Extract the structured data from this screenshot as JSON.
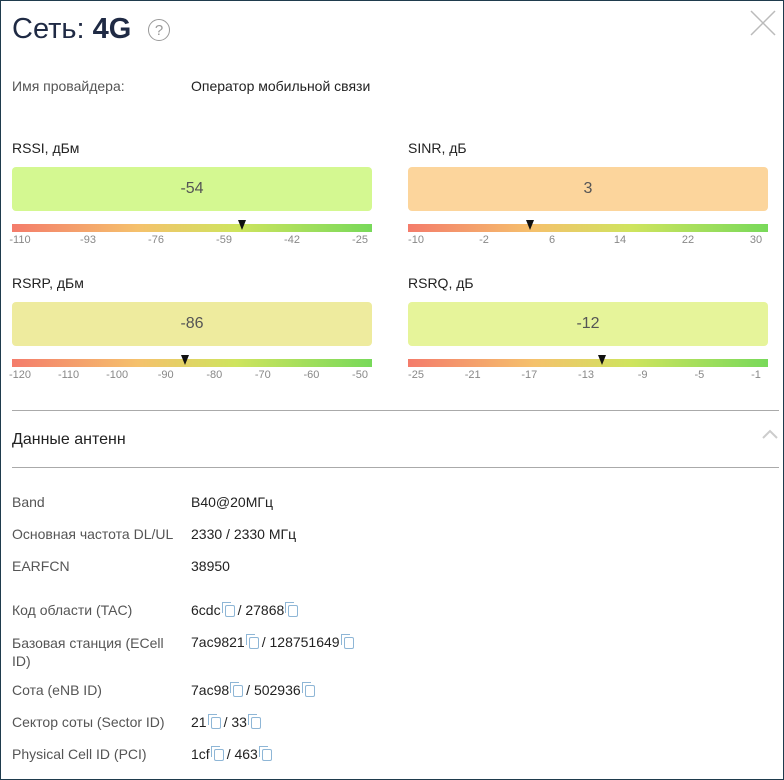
{
  "header": {
    "title_prefix": "Сеть:",
    "title_value": "4G",
    "help_glyph": "?"
  },
  "provider": {
    "label": "Имя провайдера:",
    "value": "Оператор мобильной связи"
  },
  "metrics": [
    {
      "label": "RSSI, дБм",
      "value": "-54",
      "fraction": 0.64,
      "color": "#d4f891",
      "ticks": [
        "-110",
        "-93",
        "-76",
        "-59",
        "-42",
        "-25"
      ]
    },
    {
      "label": "SINR, дБ",
      "value": "3",
      "fraction": 0.34,
      "color": "#fcd59c",
      "ticks": [
        "-10",
        "-2",
        "6",
        "14",
        "22",
        "30"
      ]
    },
    {
      "label": "RSRP, дБм",
      "value": "-86",
      "fraction": 0.48,
      "color": "#eeeb9e",
      "ticks": [
        "-120",
        "-110",
        "-100",
        "-90",
        "-80",
        "-70",
        "-60",
        "-50"
      ]
    },
    {
      "label": "RSRQ, дБ",
      "value": "-12",
      "fraction": 0.54,
      "color": "#e6f49a",
      "ticks": [
        "-25",
        "-21",
        "-17",
        "-13",
        "-9",
        "-5",
        "-1"
      ]
    }
  ],
  "antenna": {
    "title": "Данные антенн",
    "rows": [
      {
        "label": "Band",
        "v1": "B40@20МГц"
      },
      {
        "label": "Основная частота DL/UL",
        "v1": "2330 / 2330 МГц"
      },
      {
        "label": "EARFCN",
        "v1": "38950"
      },
      {
        "label": "Код области (TAC)",
        "v1": "6cdc",
        "sep": "/",
        "v2": "27868"
      },
      {
        "label": "Базовая станция (ECell ID)",
        "v1": "7ac9821",
        "sep": "/",
        "v2": "128751649"
      },
      {
        "label": "Сота (eNB ID)",
        "v1": "7ac98",
        "sep": "/",
        "v2": "502936"
      },
      {
        "label": "Сектор соты (Sector ID)",
        "v1": "21",
        "sep": "/",
        "v2": "33"
      },
      {
        "label": "Physical Cell ID (PCI)",
        "v1": "1cf",
        "sep": "/",
        "v2": "463"
      }
    ]
  }
}
